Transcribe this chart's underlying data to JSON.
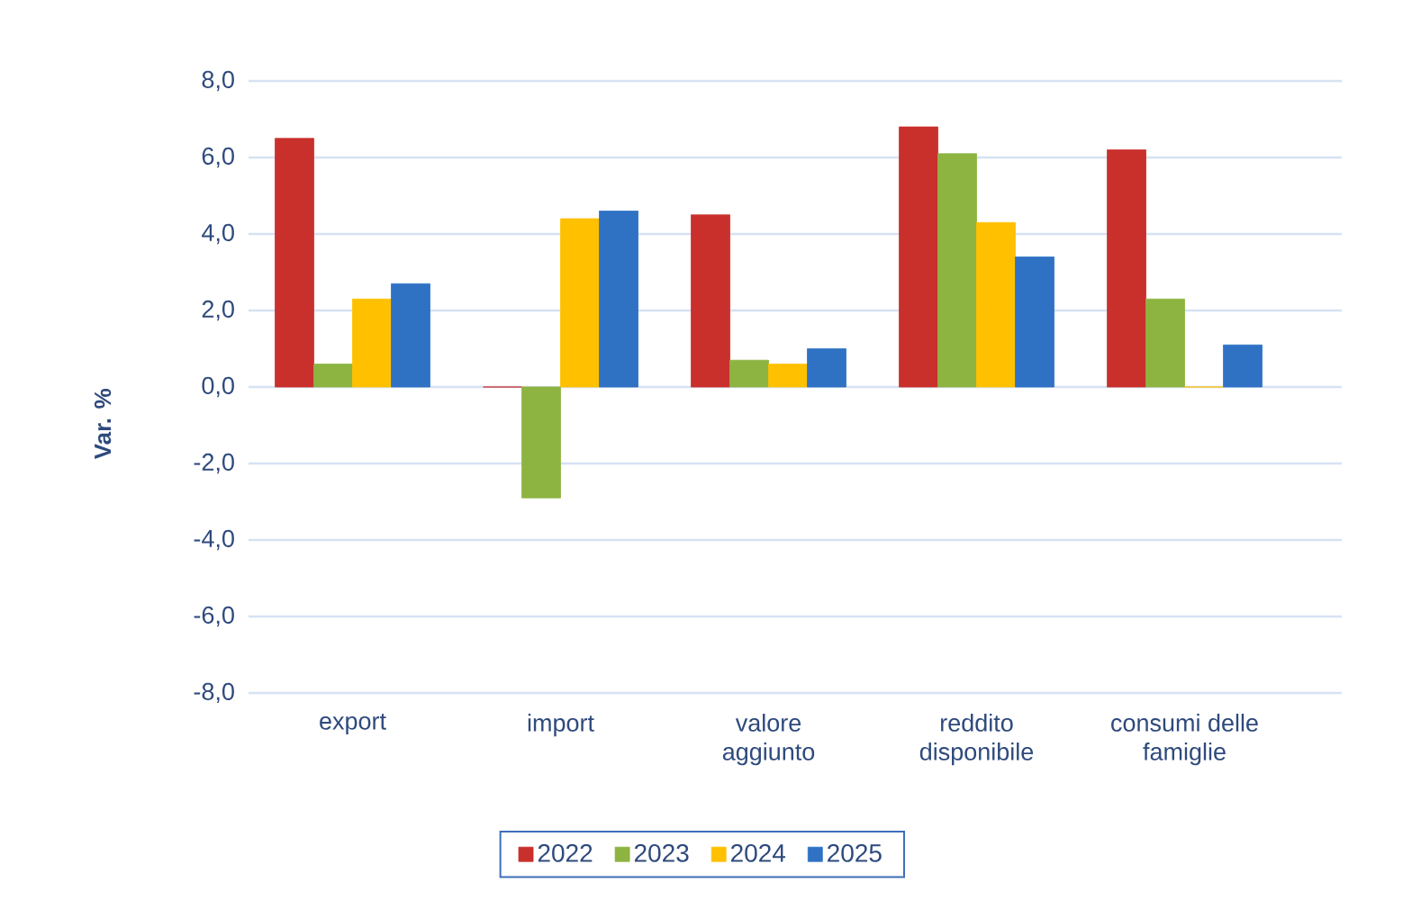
{
  "chart_data": {
    "type": "bar",
    "ylabel": "Var. %",
    "categories": [
      "export",
      "import",
      "valore aggiunto",
      "reddito disponibile",
      "consumi delle famiglie"
    ],
    "series": [
      {
        "name": "2022",
        "color": "#c9302c",
        "values": [
          6.5,
          0.0,
          4.5,
          6.8,
          6.2
        ]
      },
      {
        "name": "2023",
        "color": "#8db441",
        "values": [
          0.6,
          -2.9,
          0.7,
          6.1,
          2.3
        ]
      },
      {
        "name": "2024",
        "color": "#ffc000",
        "values": [
          2.3,
          4.4,
          0.6,
          4.3,
          0.0
        ]
      },
      {
        "name": "2025",
        "color": "#2f72c4",
        "values": [
          2.7,
          4.6,
          1.0,
          3.4,
          1.1
        ]
      }
    ],
    "ylim": [
      -8,
      8
    ],
    "yticks": [
      {
        "value": -8,
        "label": "-8,0"
      },
      {
        "value": -6,
        "label": "-6,0"
      },
      {
        "value": -4,
        "label": "-4,0"
      },
      {
        "value": -2,
        "label": "-2,0"
      },
      {
        "value": 0,
        "label": "0,0"
      },
      {
        "value": 2,
        "label": "2,0"
      },
      {
        "value": 4,
        "label": "4,0"
      },
      {
        "value": 6,
        "label": "6,0"
      },
      {
        "value": 8,
        "label": "8,0"
      }
    ],
    "grid": "y",
    "legend": "bottom"
  }
}
